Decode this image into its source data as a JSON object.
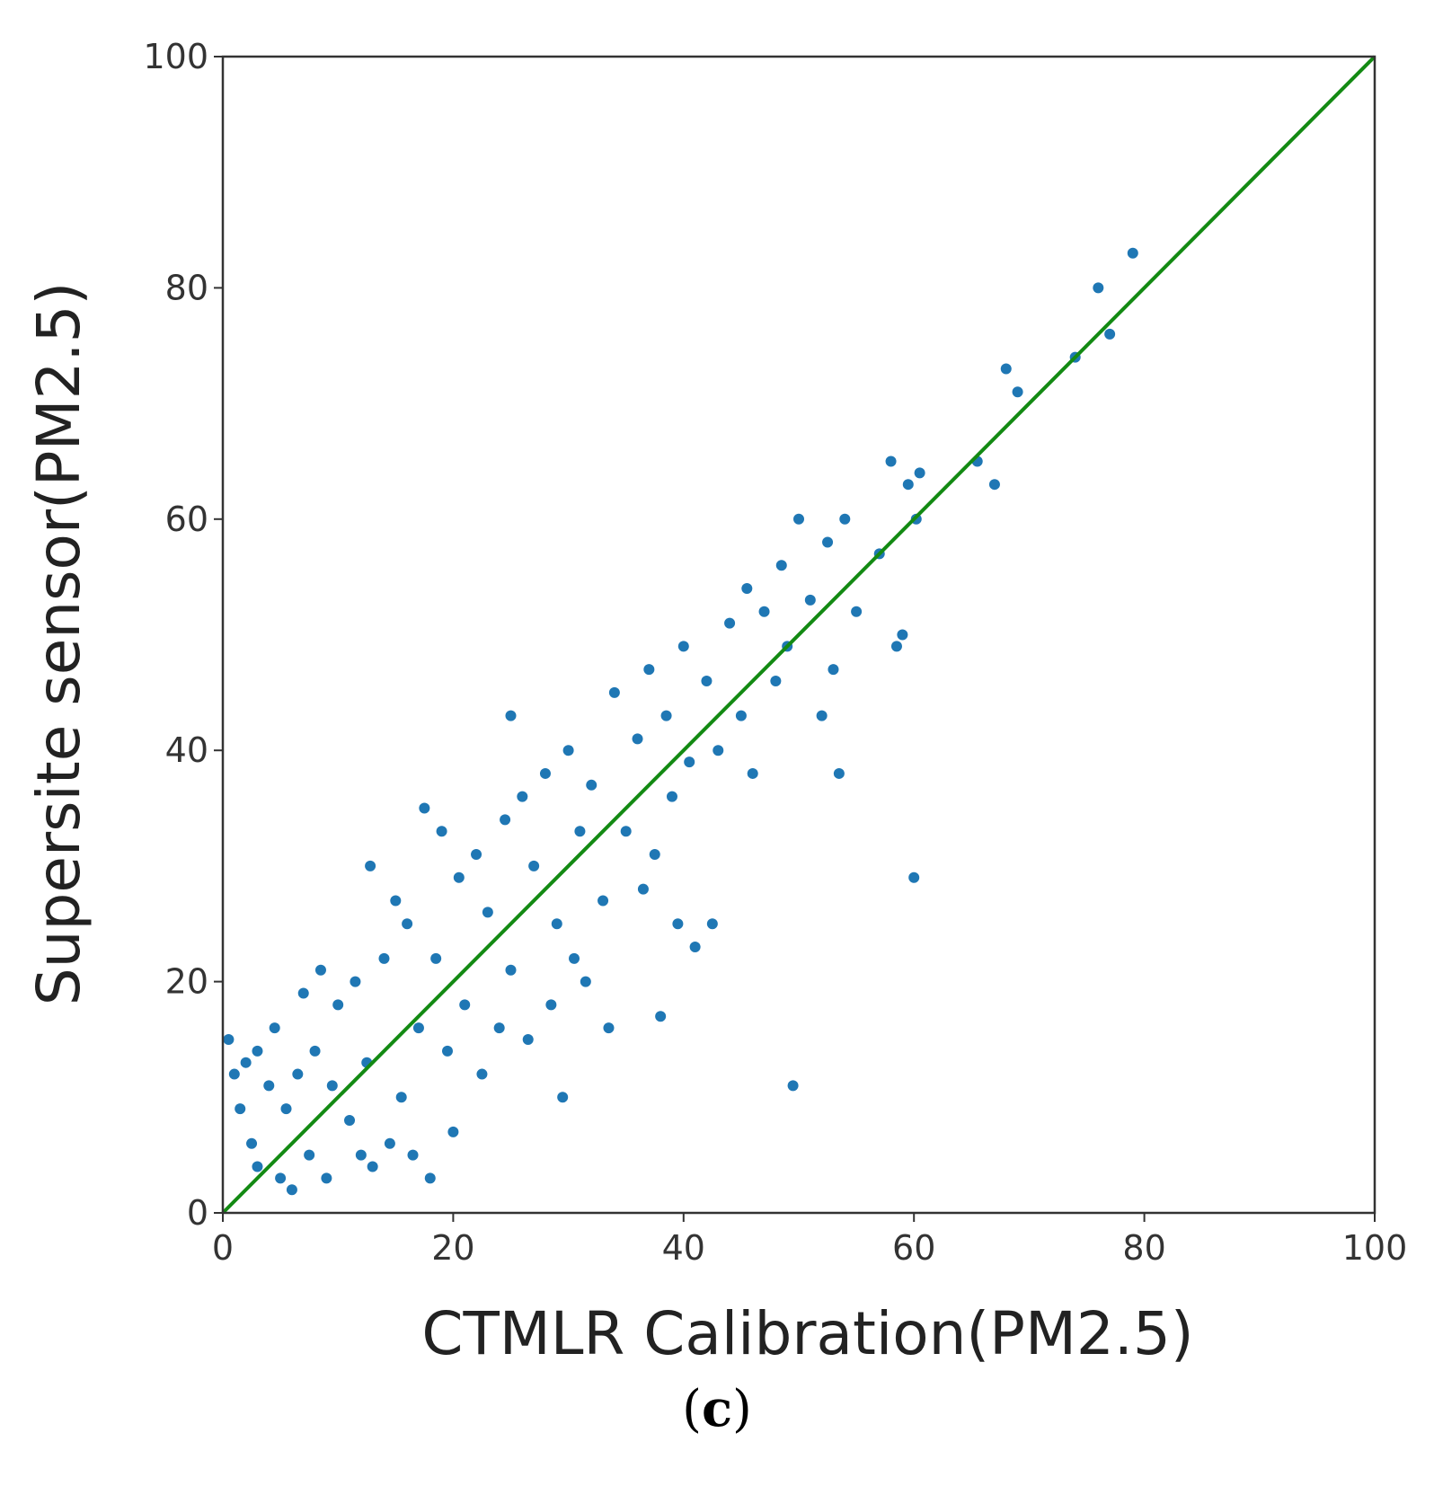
{
  "chart_data": {
    "type": "scatter",
    "xlabel": "CTMLR Calibration(PM2.5)",
    "ylabel": "Supersite sensor(PM2.5)",
    "xlim": [
      0,
      100
    ],
    "ylim": [
      0,
      100
    ],
    "x_ticks": [
      "0",
      "20",
      "40",
      "60",
      "80",
      "100"
    ],
    "y_ticks": [
      "0",
      "20",
      "40",
      "60",
      "80",
      "100"
    ],
    "grid": false,
    "colors": {
      "points": "#1f77b4",
      "reference_line": "#138a13",
      "frame": "#333333"
    },
    "reference_line": {
      "x": [
        0,
        100
      ],
      "y": [
        0,
        100
      ]
    },
    "series": [
      {
        "marker": "dot",
        "points": [
          [
            0.5,
            15
          ],
          [
            1,
            12
          ],
          [
            1.5,
            9
          ],
          [
            2,
            13
          ],
          [
            2.5,
            6
          ],
          [
            3,
            14
          ],
          [
            3,
            4
          ],
          [
            4,
            11
          ],
          [
            4.5,
            16
          ],
          [
            5,
            3
          ],
          [
            5.5,
            9
          ],
          [
            6,
            2
          ],
          [
            6.5,
            12
          ],
          [
            7,
            19
          ],
          [
            7.5,
            5
          ],
          [
            8,
            14
          ],
          [
            8.5,
            21
          ],
          [
            9,
            3
          ],
          [
            9.5,
            11
          ],
          [
            10,
            18
          ],
          [
            11,
            8
          ],
          [
            11.5,
            20
          ],
          [
            12,
            5
          ],
          [
            12.5,
            13
          ],
          [
            13,
            4
          ],
          [
            12.8,
            30
          ],
          [
            14,
            22
          ],
          [
            14.5,
            6
          ],
          [
            15,
            27
          ],
          [
            15.5,
            10
          ],
          [
            16,
            25
          ],
          [
            16.5,
            5
          ],
          [
            17,
            16
          ],
          [
            17.5,
            35
          ],
          [
            18,
            3
          ],
          [
            18.5,
            22
          ],
          [
            19,
            33
          ],
          [
            19.5,
            14
          ],
          [
            20,
            7
          ],
          [
            20.5,
            29
          ],
          [
            21,
            18
          ],
          [
            22,
            31
          ],
          [
            22.5,
            12
          ],
          [
            23,
            26
          ],
          [
            24,
            16
          ],
          [
            24.5,
            34
          ],
          [
            25,
            21
          ],
          [
            25,
            43
          ],
          [
            26,
            36
          ],
          [
            26.5,
            15
          ],
          [
            27,
            30
          ],
          [
            28,
            38
          ],
          [
            28.5,
            18
          ],
          [
            29,
            25
          ],
          [
            29.5,
            10
          ],
          [
            30,
            40
          ],
          [
            30.5,
            22
          ],
          [
            31,
            33
          ],
          [
            31.5,
            20
          ],
          [
            32,
            37
          ],
          [
            33,
            27
          ],
          [
            33.5,
            16
          ],
          [
            34,
            45
          ],
          [
            35,
            33
          ],
          [
            36,
            41
          ],
          [
            36.5,
            28
          ],
          [
            37,
            47
          ],
          [
            37.5,
            31
          ],
          [
            38,
            17
          ],
          [
            38.5,
            43
          ],
          [
            39,
            36
          ],
          [
            39.5,
            25
          ],
          [
            40,
            49
          ],
          [
            40.5,
            39
          ],
          [
            41,
            23
          ],
          [
            42,
            46
          ],
          [
            43,
            40
          ],
          [
            42.5,
            25
          ],
          [
            44,
            51
          ],
          [
            45,
            43
          ],
          [
            45.5,
            54
          ],
          [
            46,
            38
          ],
          [
            47,
            52
          ],
          [
            48,
            46
          ],
          [
            48.5,
            56
          ],
          [
            49,
            49
          ],
          [
            49.5,
            11
          ],
          [
            50,
            60
          ],
          [
            51,
            53
          ],
          [
            52,
            43
          ],
          [
            52.5,
            58
          ],
          [
            53,
            47
          ],
          [
            53.5,
            38
          ],
          [
            54,
            60
          ],
          [
            55,
            52
          ],
          [
            57,
            57
          ],
          [
            58,
            65
          ],
          [
            58.5,
            49
          ],
          [
            59,
            50
          ],
          [
            59.5,
            63
          ],
          [
            60,
            29
          ],
          [
            60.2,
            60
          ],
          [
            60.5,
            64
          ],
          [
            65.5,
            65
          ],
          [
            67,
            63
          ],
          [
            68,
            73
          ],
          [
            69,
            71
          ],
          [
            74,
            74
          ],
          [
            76,
            80
          ],
          [
            77,
            76
          ],
          [
            79,
            83
          ]
        ]
      }
    ]
  },
  "panel_label": "(c)",
  "panel_label_parts": {
    "open": "(",
    "letter": "c",
    "close": ")"
  }
}
